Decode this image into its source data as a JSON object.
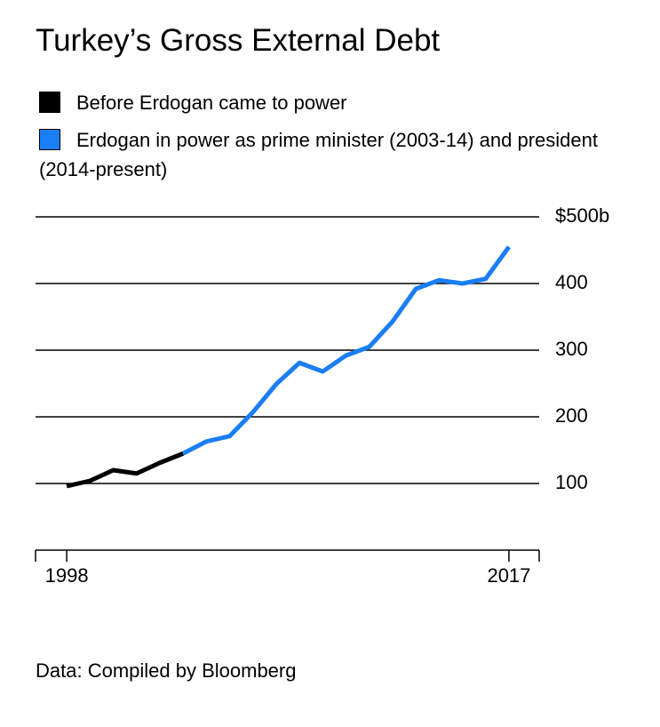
{
  "chart_data": {
    "type": "line",
    "title": "Turkey’s Gross External Debt",
    "source": "Data: Compiled by Bloomberg",
    "x": [
      1998,
      1999,
      2000,
      2001,
      2002,
      2003,
      2004,
      2005,
      2006,
      2007,
      2008,
      2009,
      2010,
      2011,
      2012,
      2013,
      2014,
      2015,
      2016,
      2017
    ],
    "series": [
      {
        "name": "Before Erdogan came to power",
        "color": "#000000",
        "values": [
          96,
          104,
          120,
          115,
          131,
          145,
          null,
          null,
          null,
          null,
          null,
          null,
          null,
          null,
          null,
          null,
          null,
          null,
          null,
          null
        ]
      },
      {
        "name": "Erdogan in power as prime minister (2003-14) and president (2014-present)",
        "color": "#1a7ef5",
        "values": [
          null,
          null,
          null,
          null,
          null,
          145,
          163,
          171,
          207,
          249,
          281,
          268,
          292,
          305,
          343,
          392,
          405,
          400,
          407,
          455
        ]
      }
    ],
    "xlim": [
      1996.66,
      2018.3
    ],
    "xticks": [
      1998,
      2017
    ],
    "ylim": [
      0,
      500
    ],
    "yticks": [
      100,
      200,
      300,
      400,
      {
        "value": 500,
        "label": "$500b"
      }
    ],
    "grid": true
  }
}
